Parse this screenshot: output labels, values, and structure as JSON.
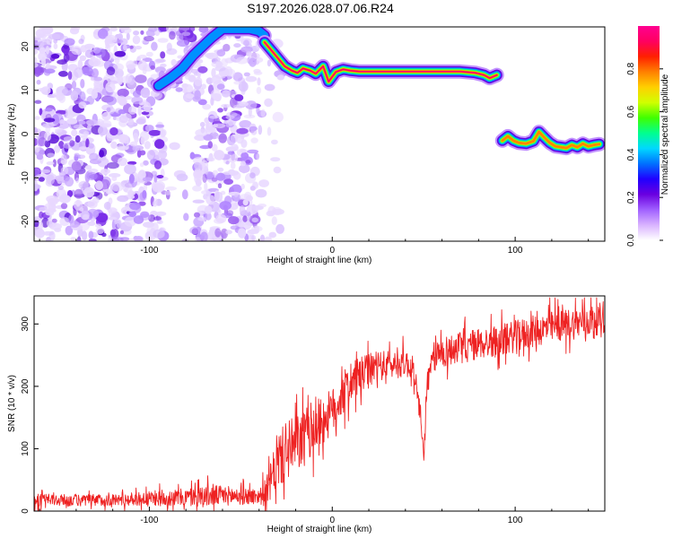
{
  "title": "S197.2026.028.07.06.R24",
  "chart_data": [
    {
      "type": "heatmap",
      "xlabel": "Height of straight line (km)",
      "ylabel": "Frequency (Hz)",
      "xlim": [
        -163,
        149
      ],
      "ylim": [
        -24.5,
        24.5
      ],
      "xticks": [
        -100,
        0,
        100
      ],
      "yticks": [
        -20,
        -10,
        0,
        10,
        20
      ],
      "colorbar": {
        "label": "Normalized spectral amplitude",
        "range": [
          0.0,
          1.0
        ],
        "ticks": [
          0.0,
          0.2,
          0.4,
          0.6,
          0.8
        ],
        "colors": [
          "#ffffff",
          "#d9b3ff",
          "#a060ff",
          "#6a00e0",
          "#2000ff",
          "#0070ff",
          "#00d8ff",
          "#00ff90",
          "#40ff00",
          "#d0ff00",
          "#ffd000",
          "#ff8000",
          "#ff2000",
          "#ff0060",
          "#ff0090"
        ]
      },
      "ridges": [
        {
          "x": [
            -95,
            -88,
            -82,
            -76,
            -71,
            -66,
            -60,
            -55,
            -50,
            -45,
            -40,
            -37
          ],
          "y": [
            11,
            13,
            15,
            18,
            20,
            22,
            24,
            24,
            24,
            24,
            23.5,
            22.5
          ],
          "amplitude": 0.35
        },
        {
          "x": [
            -37,
            -33,
            -29,
            -26,
            -22,
            -19,
            -16,
            -12,
            -9,
            -5,
            -2,
            2,
            6,
            10,
            15,
            20,
            30,
            40,
            50,
            60,
            70,
            78,
            83,
            86,
            90
          ],
          "y": [
            21,
            19,
            17,
            15.5,
            14.5,
            14,
            15,
            14.5,
            13.8,
            15.5,
            12,
            14.2,
            14.8,
            14.5,
            14.3,
            14.3,
            14.3,
            14.3,
            14.3,
            14.3,
            14.3,
            14,
            13.5,
            12.8,
            13.5
          ],
          "amplitude": 0.85
        },
        {
          "x": [
            93,
            96,
            99,
            102,
            106,
            110,
            113,
            116,
            119,
            122,
            125,
            128,
            131,
            134,
            137,
            140,
            143,
            146
          ],
          "y": [
            -1.5,
            -0.5,
            -1.5,
            -2,
            -2.2,
            -1.6,
            0.5,
            -0.8,
            -2,
            -2.8,
            -3,
            -3.2,
            -2.5,
            -3,
            -2.2,
            -2.8,
            -2.5,
            -2.3
          ],
          "amplitude": 0.75
        }
      ]
    },
    {
      "type": "line",
      "xlabel": "Height of straight line (km)",
      "ylabel": "SNR (10 * v/v)",
      "xlim": [
        -163,
        149
      ],
      "ylim": [
        0,
        345
      ],
      "xticks": [
        -100,
        0,
        100
      ],
      "yticks": [
        0,
        100,
        200,
        300
      ],
      "color": "#ee2222",
      "x": [
        -163,
        -140,
        -120,
        -100,
        -80,
        -70,
        -60,
        -50,
        -40,
        -36,
        -32,
        -30,
        -25,
        -20,
        -15,
        -10,
        -5,
        0,
        5,
        10,
        15,
        20,
        25,
        30,
        35,
        40,
        45,
        48,
        50,
        52,
        55,
        60,
        70,
        80,
        90,
        100,
        110,
        120,
        130,
        140,
        149
      ],
      "y": [
        18,
        17,
        18,
        20,
        22,
        24,
        25,
        24,
        24,
        30,
        60,
        80,
        95,
        105,
        120,
        135,
        145,
        160,
        185,
        205,
        215,
        225,
        232,
        235,
        235,
        238,
        225,
        150,
        90,
        200,
        245,
        255,
        262,
        268,
        272,
        280,
        288,
        295,
        300,
        305,
        310
      ],
      "noise": [
        12,
        12,
        12,
        14,
        18,
        22,
        20,
        18,
        15,
        30,
        45,
        55,
        60,
        60,
        55,
        55,
        50,
        45,
        45,
        40,
        38,
        35,
        30,
        28,
        28,
        28,
        25,
        20,
        15,
        30,
        30,
        32,
        32,
        32,
        32,
        32,
        32,
        32,
        32,
        32,
        32
      ]
    }
  ]
}
